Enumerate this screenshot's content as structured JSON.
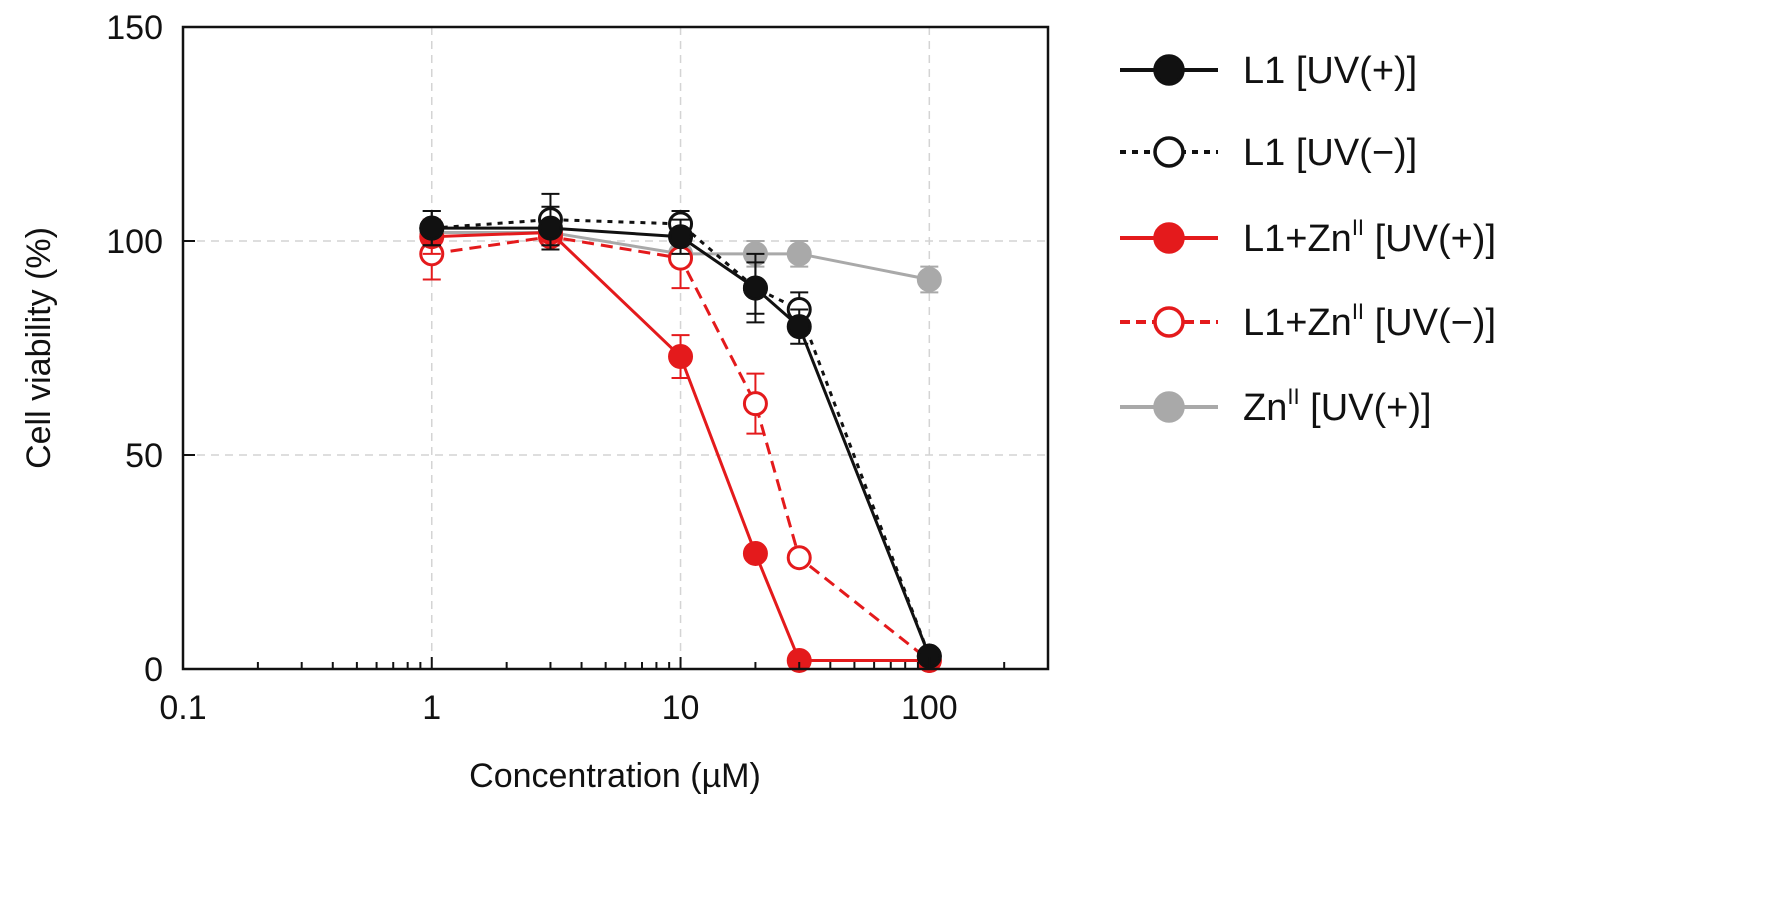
{
  "chart_data": {
    "type": "line",
    "title": "",
    "xlabel": "Concentration (µM)",
    "ylabel": "Cell viability (%)",
    "xscale": "log",
    "xlim": [
      0.1,
      300
    ],
    "ylim": [
      0,
      150
    ],
    "x_ticks": [
      {
        "value": 0.1,
        "label": "0.1"
      },
      {
        "value": 1,
        "label": "1"
      },
      {
        "value": 10,
        "label": "10"
      },
      {
        "value": 100,
        "label": "100"
      }
    ],
    "y_ticks": [
      {
        "value": 0,
        "label": "0"
      },
      {
        "value": 50,
        "label": "50"
      },
      {
        "value": 100,
        "label": "100"
      },
      {
        "value": 150,
        "label": "150"
      }
    ],
    "grid": true,
    "legend_position": "right",
    "series": [
      {
        "name": "Znᴵᴵ [UV(+)]",
        "legend_parts": [
          "Zn",
          "II",
          " [UV(+)]"
        ],
        "color": "#a9a9a9",
        "marker": "filled",
        "line": "solid",
        "x": [
          1,
          3,
          10,
          20,
          30,
          100
        ],
        "values": [
          102,
          102,
          97,
          97,
          97,
          91
        ],
        "errors": [
          3,
          2,
          3,
          3,
          3,
          3
        ]
      },
      {
        "name": "L1+Znᴵᴵ [UV(−)]",
        "legend_parts": [
          "L1+Zn",
          "II",
          " [UV(−)]"
        ],
        "color": "#e41a1c",
        "marker": "open",
        "line": "dashed",
        "x": [
          1,
          3,
          10,
          20,
          30,
          100
        ],
        "values": [
          97,
          101,
          96,
          62,
          26,
          2
        ],
        "errors": [
          6,
          2,
          7,
          7,
          0,
          0
        ]
      },
      {
        "name": "L1+Znᴵᴵ [UV(+)]",
        "legend_parts": [
          "L1+Zn",
          "II",
          " [UV(+)]"
        ],
        "color": "#e41a1c",
        "marker": "filled",
        "line": "solid",
        "x": [
          1,
          3,
          10,
          20,
          30,
          100
        ],
        "values": [
          101,
          102,
          73,
          27,
          2,
          2
        ],
        "errors": [
          4,
          2,
          5,
          0,
          0,
          0
        ]
      },
      {
        "name": "L1 [UV(−)]",
        "legend_parts": [
          "L1 [UV(−)]",
          "",
          ""
        ],
        "color": "#111111",
        "marker": "open",
        "line": "dotted",
        "x": [
          1,
          3,
          10,
          20,
          30,
          100
        ],
        "values": [
          103,
          105,
          104,
          89,
          84,
          3
        ],
        "errors": [
          4,
          6,
          3,
          8,
          4,
          0
        ]
      },
      {
        "name": "L1 [UV(+)]",
        "legend_parts": [
          "L1 [UV(+)]",
          "",
          ""
        ],
        "color": "#111111",
        "marker": "filled",
        "line": "solid",
        "x": [
          1,
          3,
          10,
          20,
          30,
          100
        ],
        "values": [
          103,
          103,
          101,
          89,
          80,
          3
        ],
        "errors": [
          4,
          5,
          4,
          6,
          4,
          0
        ]
      }
    ],
    "legend_order": [
      "L1 [UV(+)]",
      "L1 [UV(−)]",
      "L1+Znᴵᴵ [UV(+)]",
      "L1+Znᴵᴵ [UV(−)]",
      "Znᴵᴵ [UV(+)]"
    ]
  }
}
